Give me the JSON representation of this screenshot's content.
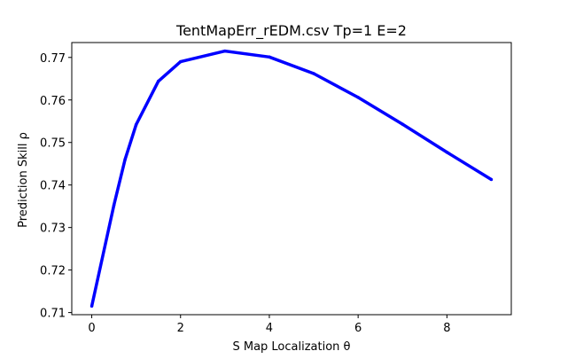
{
  "chart_data": {
    "type": "line",
    "title": "TentMapErr_rEDM.csv Tp=1 E=2",
    "xlabel": "S Map Localization θ",
    "ylabel": "Prediction Skill ρ",
    "xlim": [
      -0.45,
      9.45
    ],
    "ylim": [
      0.7095,
      0.7735
    ],
    "xticks": [
      0,
      2,
      4,
      6,
      8
    ],
    "xtick_labels": [
      "0",
      "2",
      "4",
      "6",
      "8"
    ],
    "yticks": [
      0.71,
      0.72,
      0.73,
      0.74,
      0.75,
      0.76,
      0.77
    ],
    "ytick_labels": [
      "0.71",
      "0.72",
      "0.73",
      "0.74",
      "0.75",
      "0.76",
      "0.77"
    ],
    "grid": false,
    "legend": "none",
    "series": [
      {
        "color": "#0000ff",
        "x": [
          0,
          0.5,
          0.75,
          1,
          1.5,
          2,
          3,
          4,
          5,
          6,
          7,
          8,
          9
        ],
        "y": [
          0.7115,
          0.7353,
          0.746,
          0.7542,
          0.7644,
          0.769,
          0.7715,
          0.7701,
          0.7662,
          0.7606,
          0.7543,
          0.7477,
          0.7413
        ]
      }
    ]
  }
}
